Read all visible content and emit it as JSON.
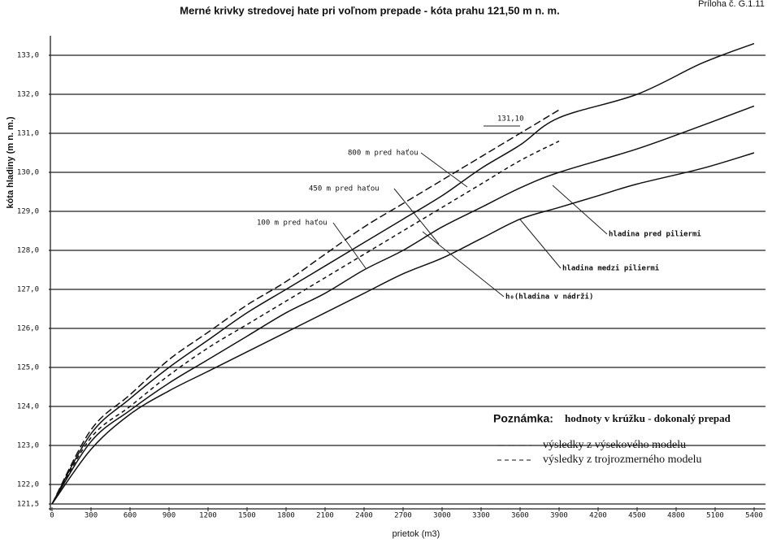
{
  "chart_data": {
    "type": "line",
    "title": "Merné krivky stredovej hate pri voľnom prepade - kóta prahu 121,50 m n. m.",
    "appendix": "Príloha č. G.1.11",
    "x_label": "prietok (m3)",
    "y_label": "kóta hladiny (m n. m.)",
    "xlim": [
      0,
      5400
    ],
    "xticks": [
      0,
      300,
      600,
      900,
      1200,
      1500,
      1800,
      2100,
      2400,
      2700,
      3000,
      3300,
      3600,
      3900,
      4200,
      4500,
      4800,
      5100,
      5400
    ],
    "ylim": [
      121.5,
      133.5
    ],
    "yticks": [
      {
        "value": 121.5,
        "label": "121,5"
      },
      {
        "value": 122,
        "label": "122,0"
      },
      {
        "value": 123,
        "label": "123,0"
      },
      {
        "value": 124,
        "label": "124,0"
      },
      {
        "value": 125,
        "label": "125,0"
      },
      {
        "value": 126,
        "label": "126,0"
      },
      {
        "value": 127,
        "label": "127,0"
      },
      {
        "value": 128,
        "label": "128,0"
      },
      {
        "value": 129,
        "label": "129,0"
      },
      {
        "value": 130,
        "label": "130,0"
      },
      {
        "value": 131,
        "label": "131,0"
      },
      {
        "value": 132,
        "label": "132,0"
      },
      {
        "value": 133,
        "label": "133,0"
      }
    ],
    "grid": true,
    "series": [
      {
        "name": "h₀(hladina v nádrži)",
        "color": "#111111",
        "dash": "none",
        "x": [
          0,
          300,
          600,
          900,
          1200,
          1500,
          1800,
          2100,
          2400,
          2700,
          3000,
          3300,
          3600,
          3900,
          4500,
          5000,
          5400
        ],
        "values": [
          121.5,
          123.3,
          124.2,
          125.0,
          125.7,
          126.4,
          127.0,
          127.6,
          128.2,
          128.8,
          129.4,
          130.1,
          130.7,
          131.4,
          132.0,
          132.8,
          133.3
        ]
      },
      {
        "name": "hladina pred piliermi",
        "color": "#111111",
        "dash": "none",
        "x": [
          0,
          300,
          600,
          900,
          1200,
          1500,
          1800,
          2100,
          2400,
          2700,
          3000,
          3300,
          3600,
          3900,
          4500,
          5000,
          5400
        ],
        "values": [
          121.5,
          123.1,
          123.9,
          124.6,
          125.2,
          125.8,
          126.4,
          126.9,
          127.5,
          128.0,
          128.6,
          129.1,
          129.6,
          130.0,
          130.6,
          131.2,
          131.7
        ]
      },
      {
        "name": "hladina medzi piliermi",
        "color": "#111111",
        "dash": "none",
        "x": [
          0,
          300,
          600,
          900,
          1200,
          1500,
          1800,
          2100,
          2400,
          2700,
          3000,
          3300,
          3600,
          3900,
          4200,
          4500,
          5000,
          5400
        ],
        "values": [
          121.5,
          122.9,
          123.8,
          124.4,
          124.9,
          125.4,
          125.9,
          126.4,
          126.9,
          127.4,
          127.8,
          128.3,
          128.8,
          129.1,
          129.4,
          129.7,
          130.1,
          130.5
        ]
      },
      {
        "name": "výsledky z výsekového modelu",
        "color": "#111111",
        "dash": "9 4",
        "x": [
          0,
          300,
          600,
          900,
          1200,
          1500,
          1800,
          2100,
          2400,
          2700,
          3000,
          3300,
          3600,
          3900
        ],
        "values": [
          121.5,
          123.4,
          124.3,
          125.2,
          125.9,
          126.6,
          127.2,
          127.9,
          128.6,
          129.2,
          129.8,
          130.4,
          131.0,
          131.6
        ]
      },
      {
        "name": "výsledky z trojrozmerného modelu",
        "color": "#111111",
        "dash": "5 4",
        "x": [
          0,
          300,
          600,
          900,
          1200,
          1500,
          1800,
          2100,
          2400,
          2700,
          3000,
          3300,
          3600,
          3900
        ],
        "values": [
          121.5,
          123.2,
          124.0,
          124.8,
          125.5,
          126.1,
          126.7,
          127.3,
          127.9,
          128.5,
          129.1,
          129.7,
          130.3,
          130.8
        ]
      }
    ],
    "annotations": [
      "131,10",
      "800 m pred haťou",
      "450 m pred haťou",
      "100 m pred haťou"
    ],
    "note_label": "Poznámka:",
    "note_text": "hodnoty v krúžku - dokonalý prepad"
  }
}
